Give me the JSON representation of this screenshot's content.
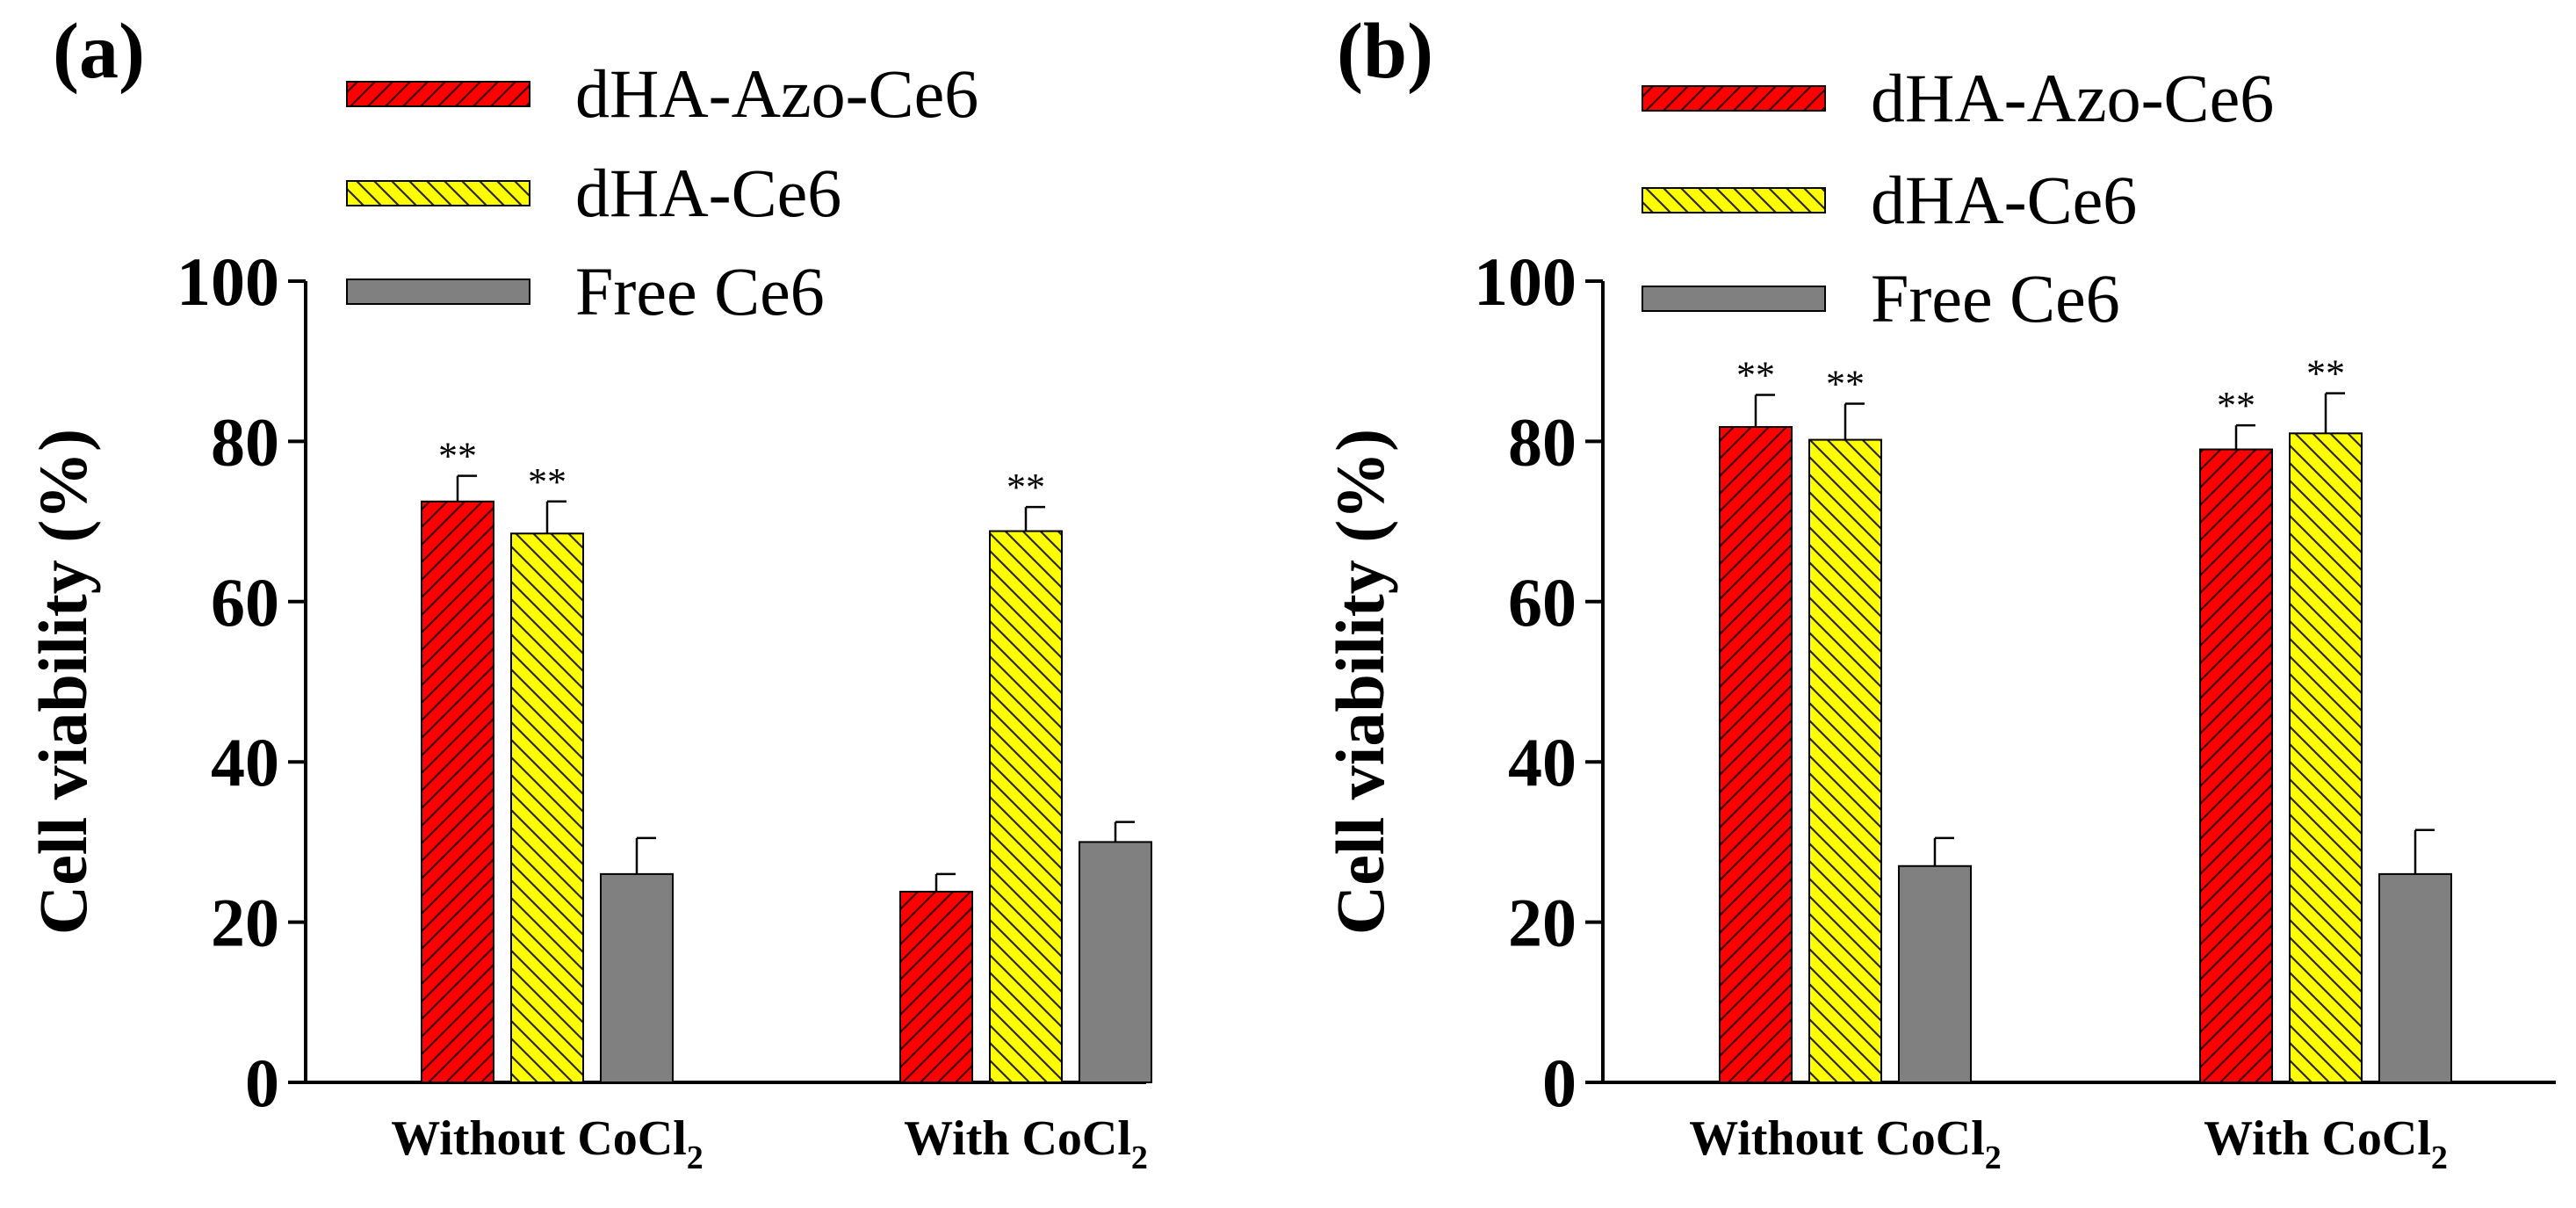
{
  "chart_data": [
    {
      "panel_label": "(a)",
      "type": "bar",
      "ylabel": "Cell viability (%)",
      "ylim": [
        0,
        100
      ],
      "yticks": [
        0,
        20,
        40,
        60,
        80,
        100
      ],
      "categories": [
        {
          "main": "Without CoCl",
          "sub": "2"
        },
        {
          "main": "With CoCl",
          "sub": "2"
        }
      ],
      "legend_position": "top",
      "series": [
        {
          "name": "dHA-Azo-Ce6",
          "color": "#ff0000",
          "pattern": "hatch-forward",
          "values": [
            72.5,
            23.8
          ],
          "errors": [
            3.2,
            2.2
          ],
          "significance": [
            "**",
            ""
          ]
        },
        {
          "name": "dHA-Ce6",
          "color": "#ffff00",
          "pattern": "hatch-backward",
          "values": [
            68.5,
            68.8
          ],
          "errors": [
            4.0,
            3.0
          ],
          "significance": [
            "**",
            "**"
          ]
        },
        {
          "name": "Free Ce6",
          "color": "#808080",
          "pattern": "solid",
          "values": [
            26.0,
            30.0
          ],
          "errors": [
            4.5,
            2.5
          ],
          "significance": [
            "",
            ""
          ]
        }
      ]
    },
    {
      "panel_label": "(b)",
      "type": "bar",
      "ylabel": "Cell viability (%)",
      "ylim": [
        0,
        100
      ],
      "yticks": [
        0,
        20,
        40,
        60,
        80,
        100
      ],
      "categories": [
        {
          "main": "Without CoCl",
          "sub": "2"
        },
        {
          "main": "With CoCl",
          "sub": "2"
        }
      ],
      "legend_position": "top",
      "series": [
        {
          "name": "dHA-Azo-Ce6",
          "color": "#ff0000",
          "pattern": "hatch-forward",
          "values": [
            81.8,
            79.0
          ],
          "errors": [
            4.0,
            3.0
          ],
          "significance": [
            "**",
            "**"
          ]
        },
        {
          "name": "dHA-Ce6",
          "color": "#ffff00",
          "pattern": "hatch-backward",
          "values": [
            80.2,
            81.0
          ],
          "errors": [
            4.5,
            5.0
          ],
          "significance": [
            "**",
            "**"
          ]
        },
        {
          "name": "Free Ce6",
          "color": "#808080",
          "pattern": "solid",
          "values": [
            27.0,
            26.0
          ],
          "errors": [
            3.5,
            5.5
          ],
          "significance": [
            "",
            ""
          ]
        }
      ]
    }
  ]
}
